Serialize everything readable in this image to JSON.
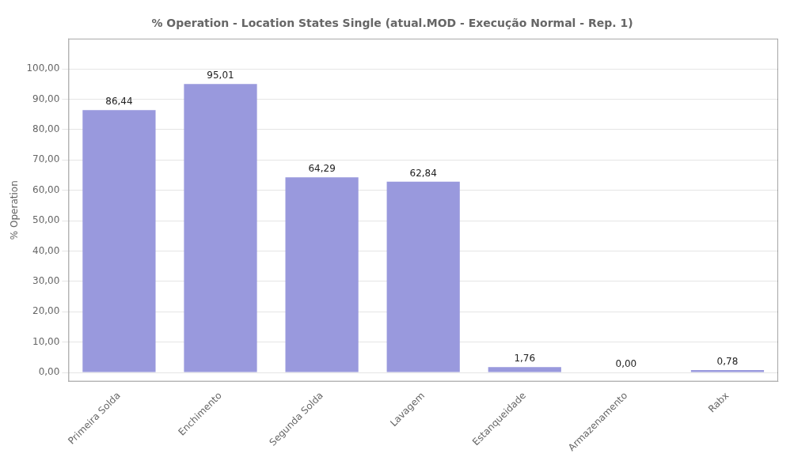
{
  "chart_data": {
    "type": "bar",
    "title": "% Operation - Location States Single (atual.MOD - Execução Normal - Rep. 1)",
    "ylabel": "% Operation",
    "categories": [
      "Primeira Solda",
      "Enchimento",
      "Segunda Solda",
      "Lavagem",
      "Estanqueidade",
      "Armazenamento",
      "Rabx"
    ],
    "values": [
      86.44,
      95.01,
      64.29,
      62.84,
      1.76,
      0.0,
      0.78
    ],
    "value_labels": [
      "86,44",
      "95,01",
      "64,29",
      "62,84",
      "1,76",
      "0,00",
      "0,78"
    ],
    "color": "#9999DD",
    "ylim": [
      -3,
      110
    ],
    "yticks": [
      {
        "value": 0,
        "label": "0,00"
      },
      {
        "value": 10,
        "label": "10,00"
      },
      {
        "value": 20,
        "label": "20,00"
      },
      {
        "value": 30,
        "label": "30,00"
      },
      {
        "value": 40,
        "label": "40,00"
      },
      {
        "value": 50,
        "label": "50,00"
      },
      {
        "value": 60,
        "label": "60,00"
      },
      {
        "value": 70,
        "label": "70,00"
      },
      {
        "value": 80,
        "label": "80,00"
      },
      {
        "value": 90,
        "label": "90,00"
      },
      {
        "value": 100,
        "label": "100,00"
      }
    ],
    "grid": true,
    "data_labels": true
  }
}
